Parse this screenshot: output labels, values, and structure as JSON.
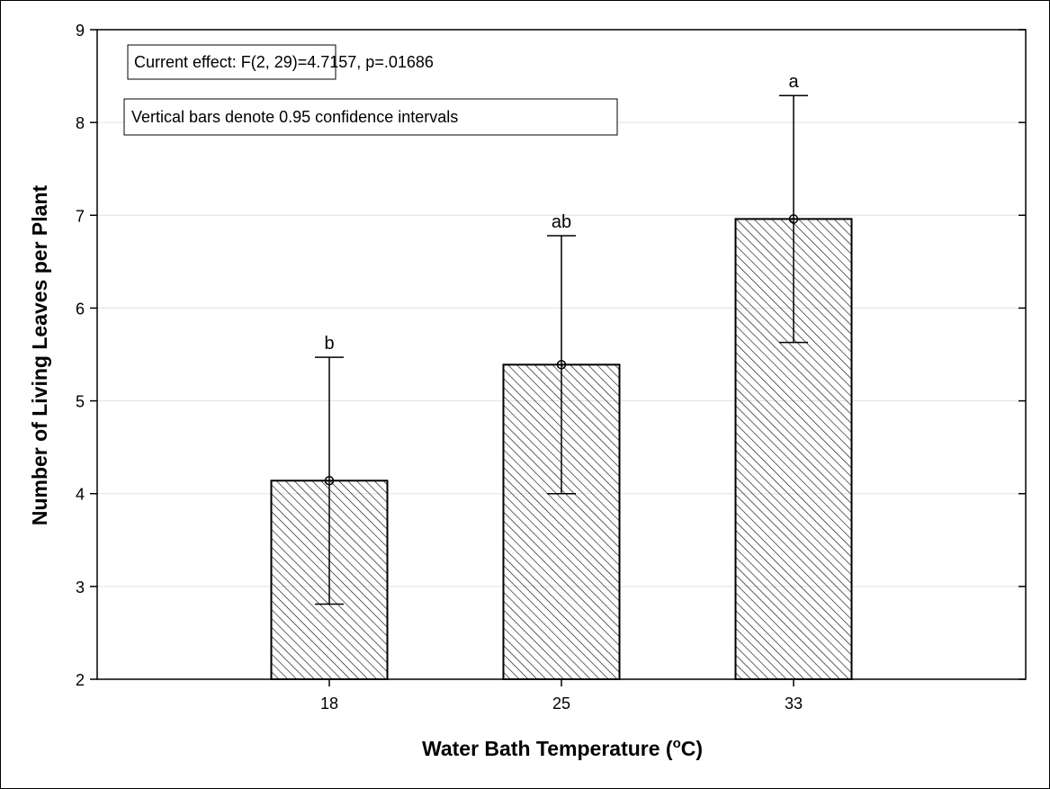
{
  "chart_data": {
    "type": "bar",
    "annotations": [
      "Current effect: F(2, 29)=4.7157, p=.01686",
      "Vertical bars denote 0.95 confidence intervals"
    ],
    "xlabel": [
      "Water Bath Temperature (",
      "o",
      "C)"
    ],
    "ylabel": "Number of Living Leaves per Plant",
    "categories": [
      "18",
      "25",
      "33"
    ],
    "values": [
      4.14,
      5.39,
      6.96
    ],
    "errors": [
      1.33,
      1.39,
      1.33
    ],
    "group_labels": [
      "b",
      "ab",
      "a"
    ],
    "ylim": [
      2,
      9
    ],
    "yticks": [
      2,
      3,
      4,
      5,
      6,
      7,
      8,
      9
    ],
    "grid": true,
    "color": "#000000"
  }
}
